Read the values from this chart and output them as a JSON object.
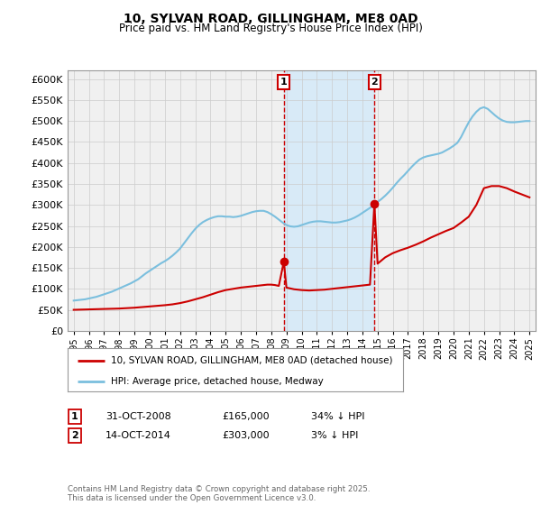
{
  "title": "10, SYLVAN ROAD, GILLINGHAM, ME8 0AD",
  "subtitle": "Price paid vs. HM Land Registry's House Price Index (HPI)",
  "legend_line1": "10, SYLVAN ROAD, GILLINGHAM, ME8 0AD (detached house)",
  "legend_line2": "HPI: Average price, detached house, Medway",
  "annotation1_date": "31-OCT-2008",
  "annotation1_price": "£165,000",
  "annotation1_hpi": "34% ↓ HPI",
  "annotation2_date": "14-OCT-2014",
  "annotation2_price": "£303,000",
  "annotation2_hpi": "3% ↓ HPI",
  "footnote": "Contains HM Land Registry data © Crown copyright and database right 2025.\nThis data is licensed under the Open Government Licence v3.0.",
  "price_color": "#cc0000",
  "hpi_color": "#7bbfde",
  "background_color": "#ffffff",
  "plot_bg_color": "#f0f0f0",
  "shade_color": "#d8eaf7",
  "ylim": [
    0,
    620000
  ],
  "yticks": [
    0,
    50000,
    100000,
    150000,
    200000,
    250000,
    300000,
    350000,
    400000,
    450000,
    500000,
    550000,
    600000
  ],
  "sale1_year": 2008.83,
  "sale1_price": 165000,
  "sale2_year": 2014.79,
  "sale2_price": 303000,
  "hpi_x": [
    1995.0,
    1995.25,
    1995.5,
    1995.75,
    1996.0,
    1996.25,
    1996.5,
    1996.75,
    1997.0,
    1997.25,
    1997.5,
    1997.75,
    1998.0,
    1998.25,
    1998.5,
    1998.75,
    1999.0,
    1999.25,
    1999.5,
    1999.75,
    2000.0,
    2000.25,
    2000.5,
    2000.75,
    2001.0,
    2001.25,
    2001.5,
    2001.75,
    2002.0,
    2002.25,
    2002.5,
    2002.75,
    2003.0,
    2003.25,
    2003.5,
    2003.75,
    2004.0,
    2004.25,
    2004.5,
    2004.75,
    2005.0,
    2005.25,
    2005.5,
    2005.75,
    2006.0,
    2006.25,
    2006.5,
    2006.75,
    2007.0,
    2007.25,
    2007.5,
    2007.75,
    2008.0,
    2008.25,
    2008.5,
    2008.75,
    2009.0,
    2009.25,
    2009.5,
    2009.75,
    2010.0,
    2010.25,
    2010.5,
    2010.75,
    2011.0,
    2011.25,
    2011.5,
    2011.75,
    2012.0,
    2012.25,
    2012.5,
    2012.75,
    2013.0,
    2013.25,
    2013.5,
    2013.75,
    2014.0,
    2014.25,
    2014.5,
    2014.75,
    2015.0,
    2015.25,
    2015.5,
    2015.75,
    2016.0,
    2016.25,
    2016.5,
    2016.75,
    2017.0,
    2017.25,
    2017.5,
    2017.75,
    2018.0,
    2018.25,
    2018.5,
    2018.75,
    2019.0,
    2019.25,
    2019.5,
    2019.75,
    2020.0,
    2020.25,
    2020.5,
    2020.75,
    2021.0,
    2021.25,
    2021.5,
    2021.75,
    2022.0,
    2022.25,
    2022.5,
    2022.75,
    2023.0,
    2023.25,
    2023.5,
    2023.75,
    2024.0,
    2024.25,
    2024.5,
    2024.75,
    2025.0
  ],
  "hpi_y": [
    72000,
    73000,
    74000,
    75000,
    77000,
    79000,
    81000,
    84000,
    87000,
    90000,
    93000,
    97000,
    101000,
    105000,
    109000,
    113000,
    118000,
    123000,
    130000,
    137000,
    143000,
    149000,
    155000,
    161000,
    166000,
    172000,
    179000,
    187000,
    196000,
    208000,
    220000,
    232000,
    243000,
    252000,
    259000,
    264000,
    268000,
    271000,
    273000,
    273000,
    272000,
    272000,
    271000,
    272000,
    274000,
    277000,
    280000,
    283000,
    285000,
    286000,
    286000,
    283000,
    278000,
    272000,
    265000,
    258000,
    252000,
    249000,
    248000,
    249000,
    252000,
    255000,
    258000,
    260000,
    261000,
    261000,
    260000,
    259000,
    258000,
    258000,
    259000,
    261000,
    263000,
    266000,
    270000,
    275000,
    281000,
    287000,
    293000,
    300000,
    307000,
    314000,
    322000,
    331000,
    341000,
    352000,
    362000,
    371000,
    381000,
    391000,
    400000,
    408000,
    413000,
    416000,
    418000,
    420000,
    422000,
    425000,
    430000,
    435000,
    441000,
    448000,
    462000,
    480000,
    497000,
    511000,
    522000,
    530000,
    533000,
    529000,
    521000,
    513000,
    506000,
    501000,
    498000,
    497000,
    497000,
    498000,
    499000,
    500000,
    500000
  ],
  "price_x": [
    1995.0,
    1995.5,
    1996.0,
    1996.5,
    1997.0,
    1997.5,
    1998.0,
    1998.5,
    1999.0,
    1999.5,
    2000.0,
    2000.5,
    2001.0,
    2001.5,
    2002.0,
    2002.5,
    2003.0,
    2003.5,
    2004.0,
    2004.5,
    2005.0,
    2005.5,
    2006.0,
    2006.5,
    2007.0,
    2007.5,
    2007.75,
    2008.0,
    2008.25,
    2008.5,
    2008.83,
    2009.0,
    2009.5,
    2010.0,
    2010.5,
    2011.0,
    2011.5,
    2012.0,
    2012.5,
    2013.0,
    2013.5,
    2014.0,
    2014.5,
    2014.79,
    2015.0,
    2015.5,
    2016.0,
    2016.5,
    2017.0,
    2017.5,
    2018.0,
    2018.5,
    2019.0,
    2019.5,
    2020.0,
    2020.5,
    2021.0,
    2021.5,
    2022.0,
    2022.5,
    2023.0,
    2023.5,
    2024.0,
    2024.5,
    2025.0
  ],
  "price_y": [
    50000,
    50500,
    51000,
    51500,
    52000,
    52500,
    53000,
    54000,
    55000,
    56500,
    58000,
    59500,
    61000,
    63000,
    66000,
    70000,
    75000,
    80000,
    86000,
    92000,
    97000,
    100000,
    103000,
    105000,
    107000,
    109000,
    110000,
    110000,
    109000,
    107000,
    165000,
    103000,
    99000,
    97000,
    96000,
    97000,
    98000,
    100000,
    102000,
    104000,
    106000,
    108000,
    110000,
    303000,
    160000,
    175000,
    185000,
    192000,
    198000,
    205000,
    213000,
    222000,
    230000,
    238000,
    245000,
    258000,
    272000,
    300000,
    340000,
    345000,
    345000,
    340000,
    332000,
    325000,
    318000
  ]
}
